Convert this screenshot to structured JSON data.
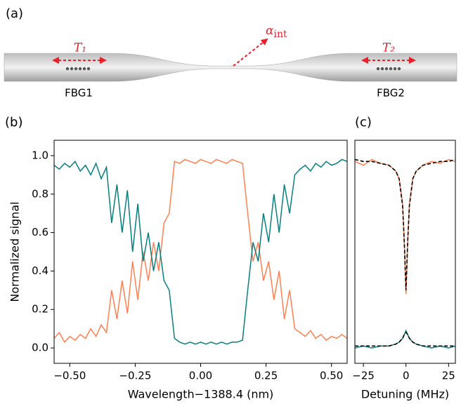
{
  "diagram": {
    "panel_label": "(a)",
    "t1": "T₁",
    "t2": "T₂",
    "alpha_symbol": "α",
    "alpha_subscript": "int",
    "fbg1": "FBG1",
    "fbg2": "FBG2"
  },
  "chart_data": [
    {
      "type": "line",
      "panel_label": "(b)",
      "x_label": "Wavelength−1388.4 (nm)",
      "y_label": "Normalized signal",
      "xlim": [
        -0.56,
        0.56
      ],
      "ylim": [
        -0.08,
        1.08
      ],
      "xticks": [
        {
          "value": -0.5,
          "label": "−0.50"
        },
        {
          "value": -0.25,
          "label": "−0.25"
        },
        {
          "value": 0,
          "label": "0.00"
        },
        {
          "value": 0.25,
          "label": "0.25"
        },
        {
          "value": 0.5,
          "label": "0.50"
        }
      ],
      "yticks": [
        {
          "value": 0,
          "label": "0.0"
        },
        0.2,
        0.4,
        0.6,
        0.8,
        {
          "value": 1,
          "label": "1.0"
        }
      ],
      "x": [
        -0.56,
        -0.54,
        -0.52,
        -0.5,
        -0.48,
        -0.46,
        -0.44,
        -0.42,
        -0.4,
        -0.38,
        -0.36,
        -0.34,
        -0.32,
        -0.3,
        -0.28,
        -0.26,
        -0.24,
        -0.22,
        -0.2,
        -0.18,
        -0.16,
        -0.14,
        -0.12,
        -0.1,
        -0.08,
        -0.06,
        -0.04,
        -0.02,
        0,
        0.02,
        0.04,
        0.06,
        0.08,
        0.1,
        0.12,
        0.14,
        0.16,
        0.18,
        0.2,
        0.22,
        0.24,
        0.26,
        0.28,
        0.3,
        0.32,
        0.34,
        0.36,
        0.38,
        0.4,
        0.42,
        0.44,
        0.46,
        0.48,
        0.5,
        0.52,
        0.54,
        0.56
      ],
      "series": [
        {
          "color": "#ff7f50",
          "values": [
            0.05,
            0.08,
            0.03,
            0.06,
            0.04,
            0.07,
            0.05,
            0.1,
            0.06,
            0.12,
            0.08,
            0.3,
            0.15,
            0.35,
            0.18,
            0.45,
            0.25,
            0.5,
            0.35,
            0.55,
            0.4,
            0.65,
            0.7,
            0.97,
            0.96,
            0.98,
            0.97,
            0.96,
            0.98,
            0.97,
            0.96,
            0.98,
            0.97,
            0.96,
            0.98,
            0.97,
            0.96,
            0.7,
            0.45,
            0.55,
            0.35,
            0.45,
            0.25,
            0.4,
            0.15,
            0.3,
            0.1,
            0.08,
            0.06,
            0.09,
            0.05,
            0.07,
            0.04,
            0.06,
            0.05,
            0.07,
            0.05
          ]
        },
        {
          "color": "#087f7f",
          "values": [
            0.95,
            0.93,
            0.96,
            0.94,
            0.97,
            0.92,
            0.95,
            0.9,
            0.96,
            0.88,
            0.94,
            0.65,
            0.85,
            0.6,
            0.82,
            0.5,
            0.75,
            0.45,
            0.6,
            0.4,
            0.55,
            0.35,
            0.3,
            0.05,
            0.03,
            0.02,
            0.03,
            0.02,
            0.03,
            0.02,
            0.03,
            0.02,
            0.03,
            0.02,
            0.03,
            0.03,
            0.04,
            0.3,
            0.55,
            0.45,
            0.7,
            0.55,
            0.8,
            0.6,
            0.85,
            0.7,
            0.9,
            0.93,
            0.95,
            0.92,
            0.96,
            0.94,
            0.97,
            0.95,
            0.96,
            0.98,
            0.97
          ]
        }
      ]
    },
    {
      "type": "line",
      "panel_label": "(c)",
      "x_label": "Detuning (MHz)",
      "xlim": [
        -30,
        29
      ],
      "ylim": [
        -0.08,
        1.08
      ],
      "xticks": [
        {
          "value": -25,
          "label": "−25"
        },
        0,
        25
      ],
      "x": [
        -30,
        -25,
        -20,
        -15,
        -10,
        -6,
        -4,
        -2,
        -1,
        0,
        1,
        2,
        4,
        6,
        10,
        15,
        20,
        25,
        29
      ],
      "series": [
        {
          "color": "#ff7f50",
          "values": [
            0.97,
            0.95,
            0.98,
            0.96,
            0.95,
            0.92,
            0.88,
            0.75,
            0.55,
            0.28,
            0.55,
            0.75,
            0.88,
            0.92,
            0.95,
            0.97,
            0.96,
            0.98,
            0.97
          ]
        },
        {
          "color": "#087f7f",
          "values": [
            0,
            0.01,
            0,
            0.01,
            0.01,
            0.02,
            0.03,
            0.05,
            0.07,
            0.09,
            0.07,
            0.05,
            0.03,
            0.02,
            0.01,
            0,
            0.01,
            0,
            0.01
          ]
        },
        {
          "color": "#000000",
          "style": "dashed",
          "values": [
            0.98,
            0.97,
            0.97,
            0.96,
            0.95,
            0.92,
            0.88,
            0.74,
            0.55,
            0.3,
            0.55,
            0.74,
            0.88,
            0.92,
            0.95,
            0.96,
            0.97,
            0.97,
            0.98
          ]
        },
        {
          "color": "#000000",
          "style": "dashed",
          "values": [
            0.01,
            0.01,
            0.01,
            0.01,
            0.01,
            0.02,
            0.03,
            0.05,
            0.07,
            0.08,
            0.07,
            0.05,
            0.03,
            0.02,
            0.01,
            0.01,
            0.01,
            0.01,
            0.01
          ]
        }
      ]
    }
  ]
}
